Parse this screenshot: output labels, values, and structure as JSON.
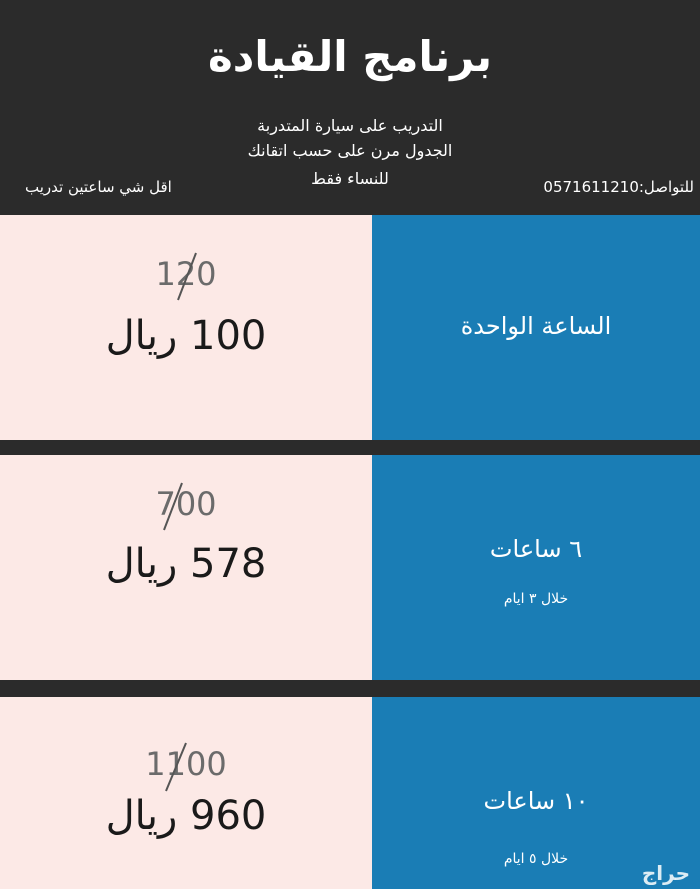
{
  "header": {
    "title": "برنامج القيادة",
    "lines": [
      "التدريب على سيارة المتدربة",
      "الجدول مرن على حسب اتقانك",
      "للنساء فقط"
    ],
    "minimum": "اقل شي ساعتين تدريب",
    "contact": "للتواصل:0571611210"
  },
  "rows": [
    {
      "old_price": "120",
      "price": "100 ريال",
      "plan": "الساعة الواحدة"
    },
    {
      "old_price": "700",
      "price": "578 ريال",
      "plan": "٦ ساعات",
      "duration": "خلال ٣ ايام"
    },
    {
      "old_price": "1100",
      "price": "960 ريال",
      "plan": "١٠ ساعات",
      "duration": "خلال ٥ ايام"
    }
  ],
  "watermark": "حراج"
}
